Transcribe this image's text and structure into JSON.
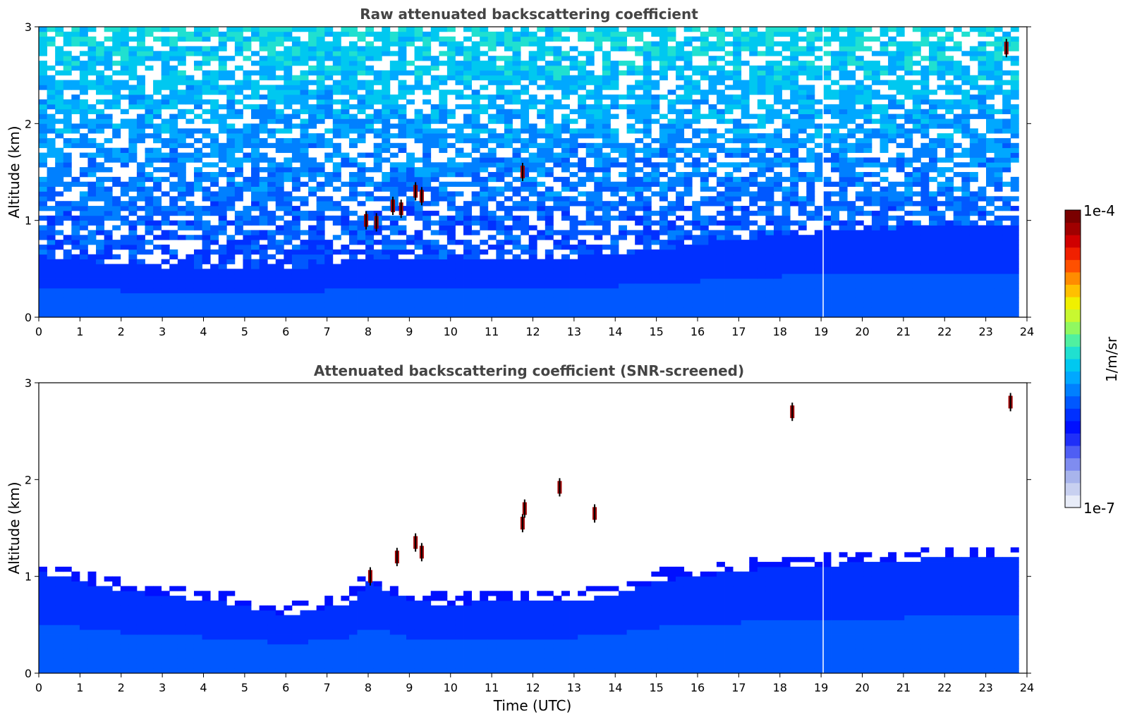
{
  "chart_data": [
    {
      "type": "heatmap",
      "title": "Raw attenuated backscattering coefficient",
      "xlabel": "",
      "ylabel": "Altitude (km)",
      "xlim": [
        0,
        24
      ],
      "ylim": [
        0,
        3
      ],
      "x_ticks": [
        "0",
        "1",
        "2",
        "3",
        "4",
        "5",
        "6",
        "7",
        "8",
        "9",
        "10",
        "11",
        "12",
        "13",
        "14",
        "15",
        "16",
        "17",
        "18",
        "19",
        "20",
        "21",
        "22",
        "23",
        "24"
      ],
      "y_ticks": [
        "0",
        "1",
        "2",
        "3"
      ],
      "data_end_time": 23.8,
      "gap_time": 19.05,
      "features": [
        {
          "name": "boundary-layer-top",
          "x": [
            0,
            2,
            4,
            6,
            7,
            8,
            10,
            12,
            14,
            16,
            18,
            20,
            22,
            23.8
          ],
          "y": [
            0.6,
            0.55,
            0.5,
            0.5,
            0.55,
            0.6,
            0.6,
            0.6,
            0.65,
            0.75,
            0.85,
            0.9,
            0.95,
            0.95
          ]
        },
        {
          "name": "cloud-fragments",
          "points": [
            [
              7.95,
              1.0
            ],
            [
              8.2,
              0.98
            ],
            [
              8.6,
              1.15
            ],
            [
              8.8,
              1.12
            ],
            [
              9.15,
              1.3
            ],
            [
              9.3,
              1.25
            ],
            [
              11.75,
              1.5
            ],
            [
              23.5,
              2.78
            ]
          ]
        }
      ]
    },
    {
      "type": "heatmap",
      "title": "Attenuated backscattering coefficient (SNR-screened)",
      "xlabel": "Time (UTC)",
      "ylabel": "Altitude (km)",
      "xlim": [
        0,
        24
      ],
      "ylim": [
        0,
        3
      ],
      "x_ticks": [
        "0",
        "1",
        "2",
        "3",
        "4",
        "5",
        "6",
        "7",
        "8",
        "9",
        "10",
        "11",
        "12",
        "13",
        "14",
        "15",
        "16",
        "17",
        "18",
        "19",
        "20",
        "21",
        "22",
        "23",
        "24"
      ],
      "y_ticks": [
        "0",
        "1",
        "2",
        "3"
      ],
      "data_end_time": 23.8,
      "gap_time": 19.05,
      "features": [
        {
          "name": "screened-layer-top",
          "x": [
            0,
            1,
            2,
            3,
            4,
            5,
            6,
            7,
            7.5,
            8,
            9,
            10,
            11,
            12,
            13,
            14,
            15,
            16,
            17,
            18,
            19,
            20,
            21,
            22,
            23,
            23.8
          ],
          "y": [
            1.05,
            0.95,
            0.85,
            0.8,
            0.75,
            0.7,
            0.6,
            0.68,
            0.7,
            0.95,
            0.75,
            0.7,
            0.75,
            0.75,
            0.75,
            0.8,
            0.95,
            1.0,
            1.05,
            1.1,
            1.1,
            1.15,
            1.15,
            1.2,
            1.2,
            1.2
          ]
        },
        {
          "name": "cloud-fragments",
          "points": [
            [
              8.05,
              1.0
            ],
            [
              8.7,
              1.2
            ],
            [
              9.15,
              1.35
            ],
            [
              9.3,
              1.25
            ],
            [
              11.75,
              1.55
            ],
            [
              11.8,
              1.7
            ],
            [
              12.65,
              1.92
            ],
            [
              13.5,
              1.65
            ],
            [
              18.3,
              2.7
            ],
            [
              23.6,
              2.8
            ]
          ]
        }
      ]
    }
  ],
  "colorbar": {
    "label": "1/m/sr",
    "max_label": "1e-4",
    "min_label": "1e-7",
    "colors": [
      "#e8ecf8",
      "#c8d0f0",
      "#a8b4ec",
      "#7f8cf0",
      "#4f5ef4",
      "#1f2ff8",
      "#0010ff",
      "#0030ff",
      "#0058ff",
      "#0080ff",
      "#00a8ff",
      "#00c8f0",
      "#20e0d0",
      "#50f0a0",
      "#90f860",
      "#c8f830",
      "#f0f000",
      "#ffc000",
      "#ff8c00",
      "#ff5000",
      "#f02000",
      "#d00000",
      "#a00000",
      "#7a0000"
    ]
  }
}
